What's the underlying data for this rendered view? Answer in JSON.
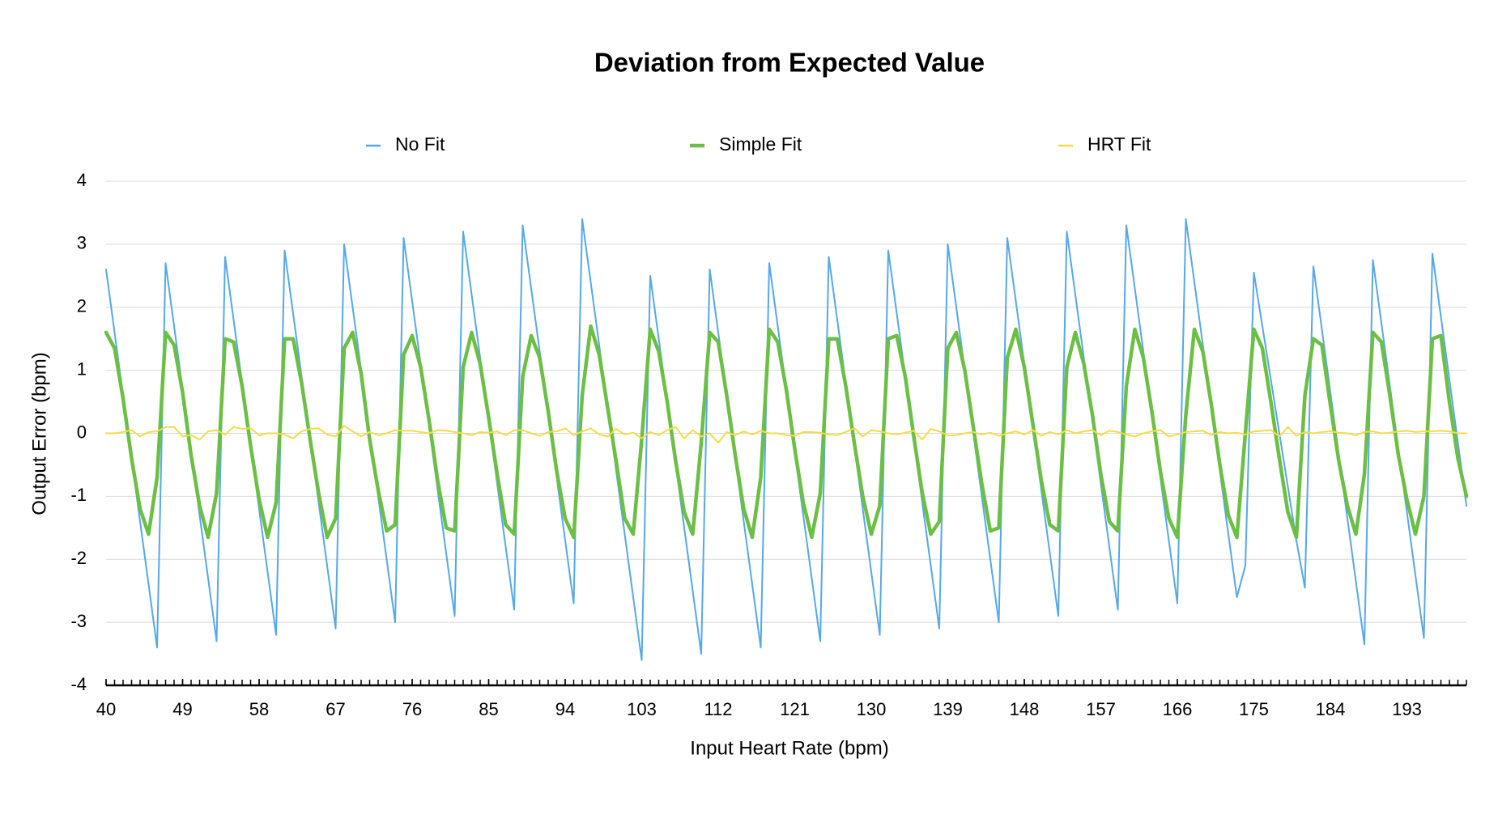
{
  "chart_data": {
    "type": "line",
    "title": "Deviation from Expected Value",
    "x_label": "Input Heart Rate (bpm)",
    "y_label": "Output Error (bpm)",
    "legend": "top",
    "grid": true,
    "x": [
      40,
      41,
      42,
      43,
      44,
      45,
      46,
      47,
      48,
      49,
      50,
      51,
      52,
      53,
      54,
      55,
      56,
      57,
      58,
      59,
      60,
      61,
      62,
      63,
      64,
      65,
      66,
      67,
      68,
      69,
      70,
      71,
      72,
      73,
      74,
      75,
      76,
      77,
      78,
      79,
      80,
      81,
      82,
      83,
      84,
      85,
      86,
      87,
      88,
      89,
      90,
      91,
      92,
      93,
      94,
      95,
      96,
      97,
      98,
      99,
      100,
      101,
      102,
      103,
      104,
      105,
      106,
      107,
      108,
      109,
      110,
      111,
      112,
      113,
      114,
      115,
      116,
      117,
      118,
      119,
      120,
      121,
      122,
      123,
      124,
      125,
      126,
      127,
      128,
      129,
      130,
      131,
      132,
      133,
      134,
      135,
      136,
      137,
      138,
      139,
      140,
      141,
      142,
      143,
      144,
      145,
      146,
      147,
      148,
      149,
      150,
      151,
      152,
      153,
      154,
      155,
      156,
      157,
      158,
      159,
      160,
      161,
      162,
      163,
      164,
      165,
      166,
      167,
      168,
      169,
      170,
      171,
      172,
      173,
      174,
      175,
      176,
      177,
      178,
      179,
      180,
      181,
      182,
      183,
      184,
      185,
      186,
      187,
      188,
      189,
      190,
      191,
      192,
      193,
      194,
      195,
      196,
      197,
      198,
      199,
      200
    ],
    "xlim": [
      40,
      200
    ],
    "xticks": [
      40,
      49,
      58,
      67,
      76,
      85,
      94,
      103,
      112,
      121,
      130,
      139,
      148,
      157,
      166,
      175,
      184,
      193
    ],
    "ylim": [
      -4,
      4
    ],
    "yticks": [
      -4,
      -3,
      -2,
      -1,
      0,
      1,
      2,
      3,
      4
    ],
    "series": [
      {
        "name": "No Fit",
        "color": "#55a8ea",
        "values": [
          2.6,
          1.6,
          0.6,
          -0.4,
          -1.4,
          -2.4,
          -3.4,
          2.7,
          1.7,
          0.7,
          -0.3,
          -1.3,
          -2.3,
          -3.3,
          2.8,
          1.8,
          0.8,
          -0.2,
          -1.2,
          -2.2,
          -3.2,
          2.9,
          1.9,
          0.9,
          -0.1,
          -1.1,
          -2.1,
          -3.1,
          3.0,
          2.0,
          1.0,
          0.0,
          -1.0,
          -2.0,
          -3.0,
          3.1,
          2.1,
          1.1,
          0.1,
          -0.9,
          -1.9,
          -2.9,
          3.2,
          2.2,
          1.2,
          0.2,
          -0.8,
          -1.8,
          -2.8,
          3.3,
          2.3,
          1.3,
          0.3,
          -0.7,
          -1.7,
          -2.7,
          3.4,
          2.4,
          1.4,
          0.4,
          -0.6,
          -1.6,
          -2.6,
          -3.6,
          2.5,
          1.5,
          0.5,
          -0.5,
          -1.5,
          -2.5,
          -3.5,
          2.6,
          1.6,
          0.6,
          -0.4,
          -1.4,
          -2.4,
          -3.4,
          2.7,
          1.7,
          0.7,
          -0.3,
          -1.3,
          -2.3,
          -3.3,
          2.8,
          1.8,
          0.8,
          -0.2,
          -1.2,
          -2.2,
          -3.2,
          2.9,
          1.9,
          0.9,
          -0.1,
          -1.1,
          -2.1,
          -3.1,
          3.0,
          2.0,
          1.0,
          0.0,
          -1.0,
          -2.0,
          -3.0,
          3.1,
          2.1,
          1.1,
          0.1,
          -0.9,
          -1.9,
          -2.9,
          3.2,
          2.2,
          1.2,
          0.2,
          -0.8,
          -1.8,
          -2.8,
          3.3,
          2.3,
          1.3,
          0.3,
          -0.7,
          -1.7,
          -2.7,
          3.4,
          2.4,
          1.4,
          0.4,
          -0.6,
          -1.6,
          -2.6,
          -2.1,
          2.55,
          1.7,
          0.85,
          0.0,
          -0.85,
          -1.7,
          -2.45,
          2.65,
          1.65,
          0.65,
          -0.35,
          -1.35,
          -2.35,
          -3.35,
          2.75,
          1.75,
          0.75,
          -0.25,
          -1.25,
          -2.25,
          -3.25,
          2.85,
          1.85,
          0.85,
          -0.15,
          -1.15
        ]
      },
      {
        "name": "Simple Fit",
        "color": "#6cbf45",
        "values": [
          1.6,
          1.35,
          0.55,
          -0.4,
          -1.2,
          -1.6,
          -0.7,
          1.6,
          1.4,
          0.65,
          -0.35,
          -1.15,
          -1.65,
          -0.95,
          1.5,
          1.45,
          0.75,
          -0.2,
          -1.05,
          -1.65,
          -1.1,
          1.5,
          1.5,
          0.8,
          -0.1,
          -0.95,
          -1.65,
          -1.35,
          1.35,
          1.6,
          0.95,
          -0.1,
          -0.9,
          -1.55,
          -1.45,
          1.25,
          1.55,
          1.05,
          0.2,
          -0.75,
          -1.5,
          -1.55,
          1.05,
          1.6,
          1.1,
          0.25,
          -0.65,
          -1.45,
          -1.6,
          0.9,
          1.55,
          1.2,
          0.35,
          -0.6,
          -1.35,
          -1.65,
          0.6,
          1.7,
          1.25,
          0.4,
          -0.45,
          -1.35,
          -1.6,
          -0.1,
          1.65,
          1.3,
          0.5,
          -0.45,
          -1.25,
          -1.6,
          -0.15,
          1.6,
          1.45,
          0.6,
          -0.35,
          -1.2,
          -1.65,
          -0.7,
          1.65,
          1.45,
          0.7,
          -0.25,
          -1.1,
          -1.65,
          -0.95,
          1.5,
          1.5,
          0.75,
          -0.15,
          -1.0,
          -1.6,
          -1.15,
          1.5,
          1.55,
          0.9,
          -0.05,
          -0.95,
          -1.6,
          -1.4,
          1.35,
          1.6,
          1.0,
          0.1,
          -0.8,
          -1.55,
          -1.5,
          1.2,
          1.65,
          1.05,
          0.15,
          -0.75,
          -1.45,
          -1.55,
          1.05,
          1.6,
          1.1,
          0.3,
          -0.65,
          -1.4,
          -1.55,
          0.75,
          1.65,
          1.2,
          0.35,
          -0.6,
          -1.35,
          -1.65,
          0.3,
          1.65,
          1.3,
          0.45,
          -0.5,
          -1.3,
          -1.65,
          0.0,
          1.65,
          1.35,
          0.5,
          -0.4,
          -1.25,
          -1.65,
          0.6,
          1.5,
          1.4,
          0.45,
          -0.45,
          -1.15,
          -1.6,
          -0.65,
          1.6,
          1.45,
          0.6,
          -0.35,
          -1.05,
          -1.6,
          -1.0,
          1.5,
          1.55,
          0.5,
          -0.4,
          -1.0
        ]
      },
      {
        "name": "HRT Fit",
        "color": "#f2dc4a",
        "values": [
          0,
          0,
          0.02,
          0.05,
          -0.05,
          0.02,
          0.03,
          0.1,
          0.1,
          -0.05,
          -0.03,
          -0.1,
          0.03,
          0.05,
          -0.02,
          0.1,
          0.07,
          0.08,
          -0.03,
          0,
          0,
          -0.02,
          -0.08,
          0.03,
          0.07,
          0.08,
          -0.02,
          -0.05,
          0.12,
          0.03,
          -0.05,
          0.02,
          -0.03,
          0,
          0.05,
          0.04,
          0.04,
          0.02,
          0,
          0.05,
          0.04,
          0.02,
          0,
          -0.03,
          0.02,
          0.01,
          0.03,
          -0.03,
          0.05,
          0.05,
          0,
          -0.04,
          0.02,
          0.03,
          0.08,
          -0.03,
          0.03,
          0.08,
          -0.02,
          -0.05,
          0.07,
          -0.02,
          0.01,
          -0.08,
          0.02,
          -0.03,
          0.05,
          0.1,
          -0.08,
          0.05,
          -0.05,
          0,
          -0.15,
          0.02,
          -0.03,
          0.03,
          -0.02,
          0.04,
          0,
          0,
          -0.03,
          -0.04,
          0.02,
          0.02,
          0.01,
          -0.02,
          -0.03,
          0.02,
          0.08,
          -0.05,
          0.05,
          0.03,
          0,
          -0.02,
          0.01,
          0.04,
          -0.1,
          0.07,
          0.03,
          -0.03,
          -0.03,
          0,
          0.02,
          -0.02,
          0.01,
          -0.04,
          0,
          0.03,
          -0.02,
          0.05,
          -0.04,
          0.02,
          -0.02,
          0.05,
          0,
          0.03,
          0.05,
          -0.03,
          0.04,
          0.02,
          -0.02,
          -0.05,
          0,
          0.03,
          0.05,
          -0.05,
          -0.02,
          0.02,
          0.03,
          0.04,
          -0.03,
          0.02,
          0,
          0.01,
          -0.02,
          0.03,
          0.04,
          0.05,
          -0.05,
          0.1,
          -0.04,
          0.02,
          0,
          0.02,
          0.03,
          0.01,
          0,
          -0.03,
          0.02,
          0.03,
          0,
          0.01,
          0.03,
          0.04,
          0.02,
          0.03,
          0.03,
          0.04,
          0.03,
          0,
          0
        ]
      }
    ]
  }
}
